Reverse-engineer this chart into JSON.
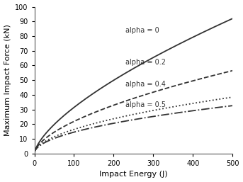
{
  "title": "",
  "xlabel": "Impact Energy (J)",
  "ylabel": "Maximum Impact Force (kN)",
  "xlim": [
    0,
    500
  ],
  "ylim": [
    0,
    100
  ],
  "xticks": [
    0,
    100,
    200,
    300,
    400,
    500
  ],
  "yticks": [
    0,
    10,
    20,
    30,
    40,
    50,
    60,
    70,
    80,
    90,
    100
  ],
  "alphas": [
    0,
    0.2,
    0.4,
    0.5
  ],
  "labels": [
    "alpha = 0",
    "alpha = 0.2",
    "alpha = 0.4",
    "alpha = 0.5"
  ],
  "linestyles": [
    "-",
    "--",
    ":",
    "-."
  ],
  "color": "#333333",
  "linewidth": 1.3,
  "scale_factor": 1.46,
  "label_positions": [
    [
      230,
      84,
      "alpha = 0"
    ],
    [
      230,
      62,
      "alpha = 0.2"
    ],
    [
      230,
      47,
      "alpha = 0.4"
    ],
    [
      230,
      33,
      "alpha = 0.5"
    ]
  ],
  "label_fontsize": 7,
  "background_color": "#ffffff",
  "tick_fontsize": 7,
  "axis_fontsize": 8
}
